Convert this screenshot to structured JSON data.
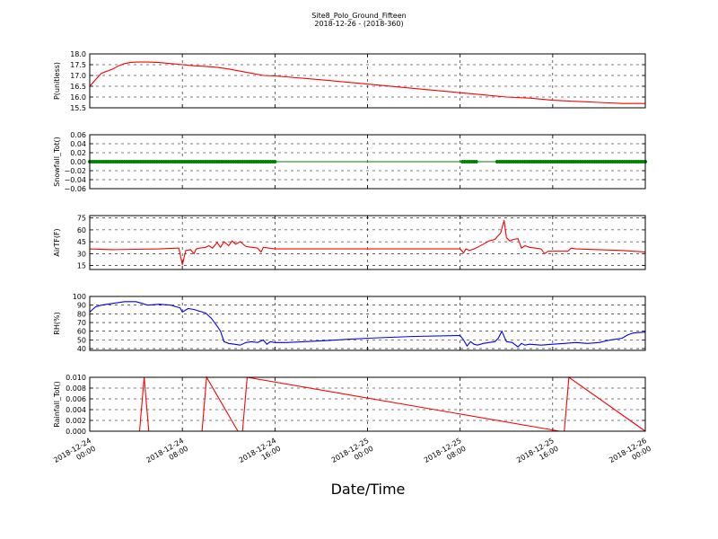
{
  "figure": {
    "title": "Site8_Polo_Ground_Fifteen",
    "subtitle": "2018-12-26 - (2018-360)",
    "xlabel": "Date/Time"
  },
  "chart_data": [
    {
      "type": "line",
      "ylabel": "P(unitless)",
      "ylim": [
        15.5,
        18.0
      ],
      "yticks": [
        "15.5",
        "16.0",
        "16.5",
        "17.0",
        "17.5",
        "18.0"
      ],
      "xlim": [
        0,
        48
      ],
      "color": "#ff0000",
      "grid": true,
      "x": [
        0,
        0.5,
        1,
        1.5,
        2,
        2.5,
        3,
        3.5,
        4,
        5,
        6,
        7,
        8,
        9,
        10,
        11,
        12,
        13,
        14,
        15,
        16,
        20,
        24,
        28,
        30,
        32,
        34,
        36,
        38,
        40,
        42,
        44,
        46,
        48
      ],
      "y": [
        16.5,
        16.8,
        17.1,
        17.2,
        17.3,
        17.45,
        17.55,
        17.6,
        17.62,
        17.62,
        17.6,
        17.55,
        17.5,
        17.45,
        17.42,
        17.38,
        17.3,
        17.2,
        17.1,
        17.0,
        16.98,
        16.8,
        16.6,
        16.4,
        16.3,
        16.2,
        16.1,
        16.0,
        15.95,
        15.85,
        15.8,
        15.75,
        15.7,
        15.7
      ]
    },
    {
      "type": "line",
      "ylabel": "Snowfall_Tot()",
      "ylim": [
        -0.06,
        0.06
      ],
      "yticks": [
        "−0.06",
        "−0.04",
        "−0.02",
        "0.00",
        "0.02",
        "0.04",
        "0.06"
      ],
      "xlim": [
        0,
        48
      ],
      "color": "#008000",
      "grid": true,
      "x": [
        0,
        48
      ],
      "y": [
        0,
        0
      ],
      "markers": [
        [
          0,
          16
        ],
        [
          32.2,
          33.5
        ],
        [
          35.2,
          48
        ]
      ]
    },
    {
      "type": "line",
      "ylabel": "AirTF(F)",
      "ylim": [
        10,
        78
      ],
      "yticks": [
        "15",
        "30",
        "45",
        "60",
        "75"
      ],
      "xlim": [
        0,
        48
      ],
      "color": "#ff0000",
      "grid": true,
      "x": [
        0,
        2,
        4,
        6,
        7.5,
        7.7,
        8,
        8.3,
        8.7,
        9,
        9.2,
        9.5,
        10,
        10.3,
        10.6,
        11,
        11.3,
        11.6,
        12,
        12.3,
        12.6,
        13,
        13.5,
        14,
        14.5,
        14.8,
        15,
        15.5,
        16,
        20,
        24,
        28,
        32,
        32.3,
        32.5,
        32.8,
        33.2,
        33.5,
        34,
        34.5,
        35,
        35.5,
        35.8,
        36,
        36.3,
        36.6,
        37,
        37.3,
        37.6,
        38,
        38.5,
        39,
        39.3,
        39.6,
        40,
        41,
        41.3,
        41.6,
        42,
        44,
        46,
        48
      ],
      "y": [
        36,
        35,
        35.5,
        36,
        37,
        37,
        16,
        34,
        35,
        30,
        36,
        37,
        38,
        40,
        37,
        44,
        38,
        45,
        40,
        46,
        42,
        45,
        39,
        38,
        37,
        32,
        38,
        37,
        36,
        36,
        36,
        36,
        36,
        31,
        36,
        34,
        36,
        38,
        42,
        46,
        48,
        56,
        72,
        50,
        46,
        48,
        49,
        37,
        40,
        38,
        37,
        36,
        30,
        33,
        33,
        33,
        33,
        37,
        36,
        35,
        34,
        32
      ]
    },
    {
      "type": "line",
      "ylabel": "RH(%)",
      "ylim": [
        38,
        100
      ],
      "yticks": [
        "40",
        "50",
        "60",
        "70",
        "80",
        "90",
        "100"
      ],
      "xlim": [
        0,
        48
      ],
      "color": "#0000ff",
      "grid": true,
      "x": [
        0,
        0.5,
        1,
        2,
        3,
        4,
        4.5,
        5,
        6,
        7,
        7.5,
        7.8,
        8,
        8.5,
        9,
        9.5,
        10,
        10.5,
        11,
        11.3,
        11.6,
        12,
        12.5,
        13,
        13.5,
        14,
        14.5,
        15,
        15.3,
        15.6,
        16,
        17,
        20,
        24,
        28,
        32,
        32.3,
        32.6,
        32.9,
        33.2,
        33.5,
        34,
        35,
        35.3,
        35.6,
        36,
        36.5,
        37,
        37.3,
        37.6,
        38,
        39,
        40,
        41,
        42,
        43,
        44,
        45,
        46,
        46.5,
        47,
        48
      ],
      "y": [
        82,
        88,
        90,
        92,
        94,
        94,
        92,
        90,
        91,
        90,
        88,
        87,
        82,
        86,
        85,
        83,
        81,
        75,
        66,
        60,
        48,
        46,
        45,
        44,
        47,
        48,
        47,
        50,
        45,
        48,
        47,
        47,
        49,
        52,
        54,
        55,
        50,
        43,
        48,
        45,
        44,
        46,
        48,
        52,
        60,
        48,
        47,
        42,
        46,
        44,
        45,
        44,
        45,
        46,
        47,
        46,
        47,
        50,
        52,
        56,
        58,
        59
      ]
    },
    {
      "type": "line",
      "ylabel": "Rainfall_Tot()",
      "ylim": [
        0,
        0.01
      ],
      "yticks": [
        "0.000",
        "0.002",
        "0.004",
        "0.006",
        "0.008",
        "0.010"
      ],
      "xlim": [
        0,
        48
      ],
      "color": "#ff0000",
      "grid": true,
      "x": [
        0,
        4.3,
        4.7,
        5.1,
        9.3,
        9.7,
        10.1,
        12.8,
        13.2,
        13.6,
        40.6,
        41.0,
        41.4,
        48
      ],
      "y": [
        0,
        0,
        0.01,
        0,
        0,
        0,
        0.01,
        0,
        0,
        0.01,
        0,
        0,
        0.01,
        0
      ],
      "y_note": "spikes"
    }
  ],
  "xticks": [
    {
      "value": 0,
      "line1": "2018-12-24",
      "line2": "00:00"
    },
    {
      "value": 8,
      "line1": "2018-12-24",
      "line2": "08:00"
    },
    {
      "value": 16,
      "line1": "2018-12-24",
      "line2": "16:00"
    },
    {
      "value": 24,
      "line1": "2018-12-25",
      "line2": "00:00"
    },
    {
      "value": 32,
      "line1": "2018-12-25",
      "line2": "08:00"
    },
    {
      "value": 40,
      "line1": "2018-12-25",
      "line2": "16:00"
    },
    {
      "value": 48,
      "line1": "2018-12-26",
      "line2": "00:00"
    }
  ]
}
